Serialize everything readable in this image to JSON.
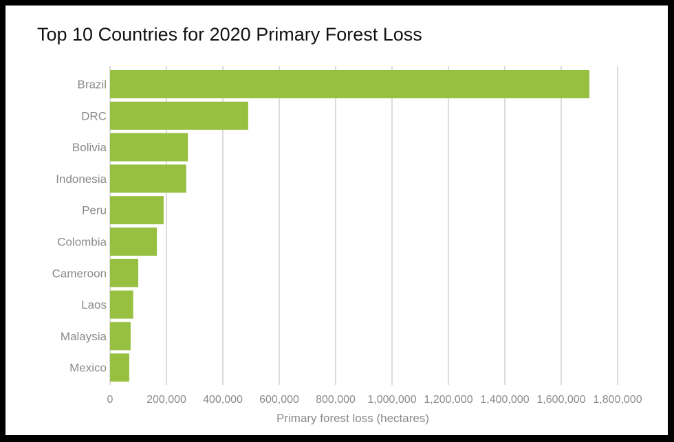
{
  "chart_data": {
    "type": "bar",
    "orientation": "horizontal",
    "title": "Top 10 Countries for 2020 Primary Forest Loss",
    "xlabel": "Primary forest loss (hectares)",
    "ylabel": "",
    "categories": [
      "Brazil",
      "DRC",
      "Bolivia",
      "Indonesia",
      "Peru",
      "Colombia",
      "Cameroon",
      "Laos",
      "Malaysia",
      "Mexico"
    ],
    "values": [
      1700000,
      490000,
      276000,
      270000,
      190000,
      166000,
      100000,
      82000,
      73000,
      68000
    ],
    "xlim": [
      0,
      1800000
    ],
    "x_ticks": [
      0,
      200000,
      400000,
      600000,
      800000,
      1000000,
      1200000,
      1400000,
      1600000,
      1800000
    ],
    "x_tick_labels": [
      "0",
      "200,000",
      "400,000",
      "600,000",
      "800,000",
      "1,000,000",
      "1,200,000",
      "1,400,000",
      "1,600,000",
      "1,800,000"
    ],
    "grid": "vertical",
    "legend": "none",
    "colors": {
      "bar": "#97bf40",
      "grid": "#c8c8c8",
      "text": "#8a8a8a",
      "title": "#111111"
    }
  }
}
